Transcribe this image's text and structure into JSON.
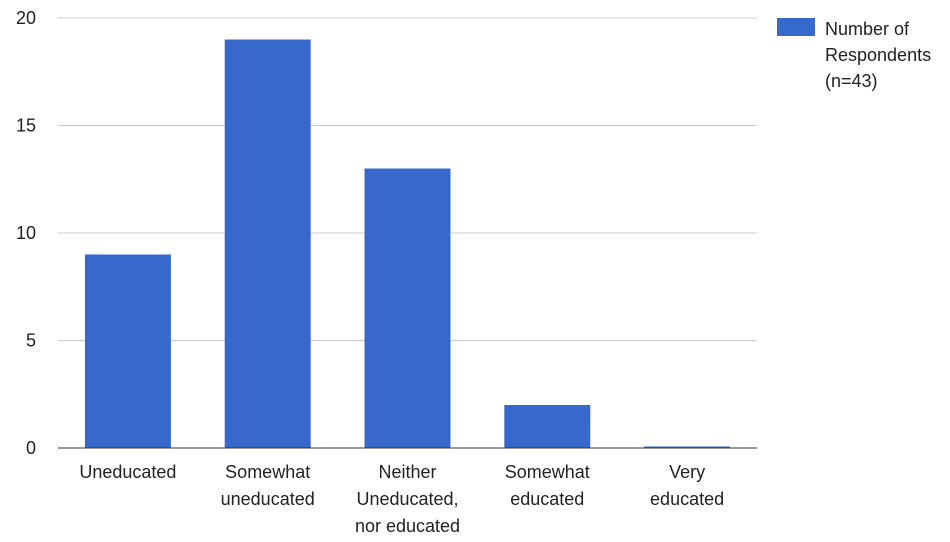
{
  "chart_data": {
    "type": "bar",
    "categories": [
      [
        "Uneducated"
      ],
      [
        "Somewhat",
        "uneducated"
      ],
      [
        "Neither",
        "Uneducated,",
        "nor educated"
      ],
      [
        "Somewhat",
        "educated"
      ],
      [
        "Very",
        "educated"
      ]
    ],
    "series": [
      {
        "name": [
          "Number of",
          "Respondents",
          "(n=43)"
        ],
        "values": [
          9,
          19,
          13,
          2,
          0
        ],
        "color": "#3669CB"
      }
    ],
    "ylim": [
      0,
      20
    ],
    "yticks": [
      "0",
      "5",
      "10",
      "15",
      "20"
    ],
    "grid": true,
    "legend_position": "right",
    "title": "",
    "xlabel": "",
    "ylabel": ""
  }
}
